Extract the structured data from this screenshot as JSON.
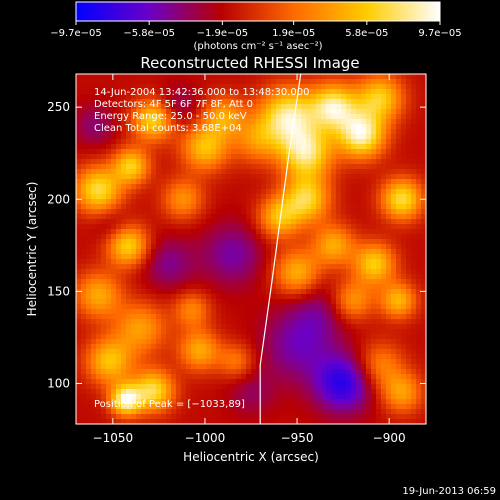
{
  "chart_data": {
    "type": "heatmap",
    "title": "Reconstructed RHESSI Image",
    "xlabel": "Heliocentric X (arcsec)",
    "ylabel": "Heliocentric Y (arcsec)",
    "xlim": [
      -1070,
      -880
    ],
    "ylim": [
      78,
      268
    ],
    "xticks": [
      -1050,
      -1000,
      -950,
      -900
    ],
    "xtick_labels": [
      "−1050",
      "−1000",
      "−950",
      "−900"
    ],
    "yticks": [
      100,
      150,
      200,
      250
    ],
    "ytick_labels": [
      "100",
      "150",
      "200",
      "250"
    ],
    "colorbar": {
      "ticks": [
        -9.7e-05,
        -5.8e-05,
        -1.9e-05,
        1.9e-05,
        5.8e-05,
        9.7e-05
      ],
      "tick_labels": [
        "−9.7e−05",
        "−5.8e−05",
        "−1.9e−05",
        "1.9e−05",
        "5.8e−05",
        "9.7e−05"
      ],
      "range": [
        -9.7e-05,
        9.7e-05
      ],
      "units": "(photons cm⁻² s⁻¹ asec⁻²)",
      "colormap": [
        "#0000ff",
        "#6a00c8",
        "#b80000",
        "#ff6a00",
        "#ffcc00",
        "#ffffff"
      ]
    },
    "annotations": [
      "14-Jun-2004 13:42:36.000 to 13:48:30.000",
      "Detectors: 4F 5F 6F 7F 8F, Att 0",
      "Energy Range: 25.0 - 50.0 keV",
      "Clean     Total counts: 3.68E+04"
    ],
    "peak_label": "Position of Peak = [−1033,89]",
    "limb_line": {
      "x": [
        -970,
        -970,
        -963,
        -955,
        -948
      ],
      "y": [
        78,
        110,
        160,
        220,
        268
      ]
    },
    "blobs": [
      {
        "x": -1043,
        "y": 91,
        "v": 9.7e-05,
        "s": 6
      },
      {
        "x": -1028,
        "y": 96,
        "v": 8e-05,
        "s": 8
      },
      {
        "x": -1052,
        "y": 112,
        "v": 6.5e-05,
        "s": 9
      },
      {
        "x": -1035,
        "y": 130,
        "v": 5e-05,
        "s": 10
      },
      {
        "x": -1058,
        "y": 148,
        "v": 5.5e-05,
        "s": 9
      },
      {
        "x": -1042,
        "y": 175,
        "v": 7.5e-05,
        "s": 8
      },
      {
        "x": -1058,
        "y": 205,
        "v": 8e-05,
        "s": 9
      },
      {
        "x": -1040,
        "y": 218,
        "v": 7e-05,
        "s": 7
      },
      {
        "x": -1028,
        "y": 243,
        "v": 7.5e-05,
        "s": 8
      },
      {
        "x": -1000,
        "y": 228,
        "v": 6.5e-05,
        "s": 9
      },
      {
        "x": -990,
        "y": 245,
        "v": 5e-05,
        "s": 8
      },
      {
        "x": -1012,
        "y": 200,
        "v": 4.5e-05,
        "s": 8
      },
      {
        "x": -1007,
        "y": 140,
        "v": 4e-05,
        "s": 7
      },
      {
        "x": -1003,
        "y": 118,
        "v": 5.5e-05,
        "s": 8
      },
      {
        "x": -983,
        "y": 112,
        "v": 3.5e-05,
        "s": 7
      },
      {
        "x": -972,
        "y": 232,
        "v": 4e-05,
        "s": 9
      },
      {
        "x": -955,
        "y": 245,
        "v": 9e-05,
        "s": 11
      },
      {
        "x": -945,
        "y": 225,
        "v": 8.5e-05,
        "s": 10
      },
      {
        "x": -930,
        "y": 250,
        "v": 9e-05,
        "s": 9
      },
      {
        "x": -915,
        "y": 235,
        "v": 9.7e-05,
        "s": 9
      },
      {
        "x": -893,
        "y": 200,
        "v": 8e-05,
        "s": 8
      },
      {
        "x": -905,
        "y": 255,
        "v": 7e-05,
        "s": 9
      },
      {
        "x": -945,
        "y": 200,
        "v": 7.5e-05,
        "s": 9
      },
      {
        "x": -960,
        "y": 190,
        "v": 6e-05,
        "s": 8
      },
      {
        "x": -930,
        "y": 175,
        "v": 5.5e-05,
        "s": 8
      },
      {
        "x": -908,
        "y": 165,
        "v": 7e-05,
        "s": 8
      },
      {
        "x": -895,
        "y": 145,
        "v": 6e-05,
        "s": 7
      },
      {
        "x": -950,
        "y": 160,
        "v": 6e-05,
        "s": 9
      },
      {
        "x": -920,
        "y": 145,
        "v": 5e-05,
        "s": 8
      },
      {
        "x": -938,
        "y": 140,
        "v": -3e-05,
        "s": 12
      },
      {
        "x": -925,
        "y": 100,
        "v": -7e-05,
        "s": 11
      },
      {
        "x": -950,
        "y": 120,
        "v": -4e-05,
        "s": 14
      },
      {
        "x": -905,
        "y": 110,
        "v": 4e-05,
        "s": 9
      },
      {
        "x": -893,
        "y": 95,
        "v": 5e-05,
        "s": 8
      },
      {
        "x": -985,
        "y": 170,
        "v": -4e-05,
        "s": 12
      },
      {
        "x": -1020,
        "y": 165,
        "v": -3.5e-05,
        "s": 10
      },
      {
        "x": -1060,
        "y": 240,
        "v": -3e-05,
        "s": 8
      },
      {
        "x": -1015,
        "y": 250,
        "v": -3e-05,
        "s": 8
      },
      {
        "x": -975,
        "y": 95,
        "v": -2.5e-05,
        "s": 9
      },
      {
        "x": -1050,
        "y": 185,
        "v": -2.5e-05,
        "s": 7
      }
    ]
  },
  "footer": {
    "date_stamp": "19-Jun-2013 06:59"
  }
}
